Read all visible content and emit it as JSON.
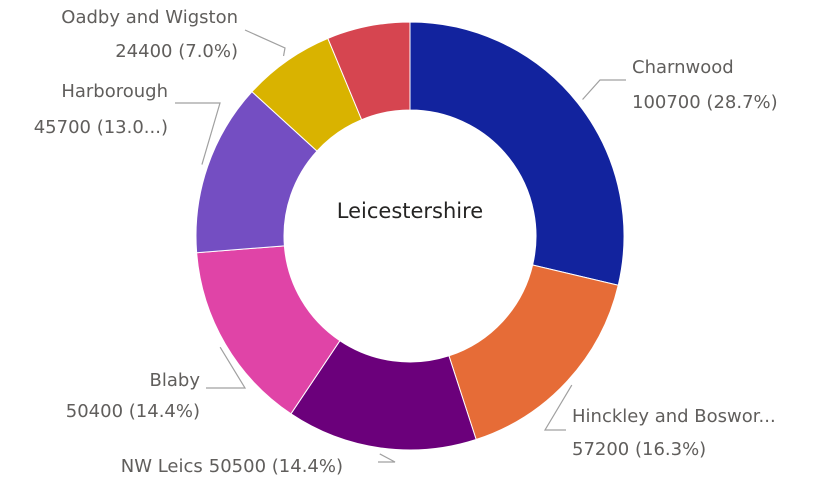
{
  "chart_data": {
    "type": "donut",
    "center_label": "Leicestershire",
    "categories": [
      "Charnwood",
      "Hinckley and Boswor...",
      "NW Leics",
      "Blaby",
      "Harborough",
      "Oadby and Wigston",
      null
    ],
    "values": [
      100700,
      57200,
      50500,
      50400,
      45700,
      24400,
      22000
    ],
    "value_labels": [
      "100700 (28.7%)",
      "57200 (16.3%)",
      "50500 (14.4%)",
      "50400 (14.4%)",
      "45700 (13.0...)",
      "24400 (7.0%)",
      null
    ],
    "colors": [
      "#12239E",
      "#E66C37",
      "#6B007B",
      "#E044A7",
      "#744EC2",
      "#D9B300",
      "#D64550"
    ]
  }
}
